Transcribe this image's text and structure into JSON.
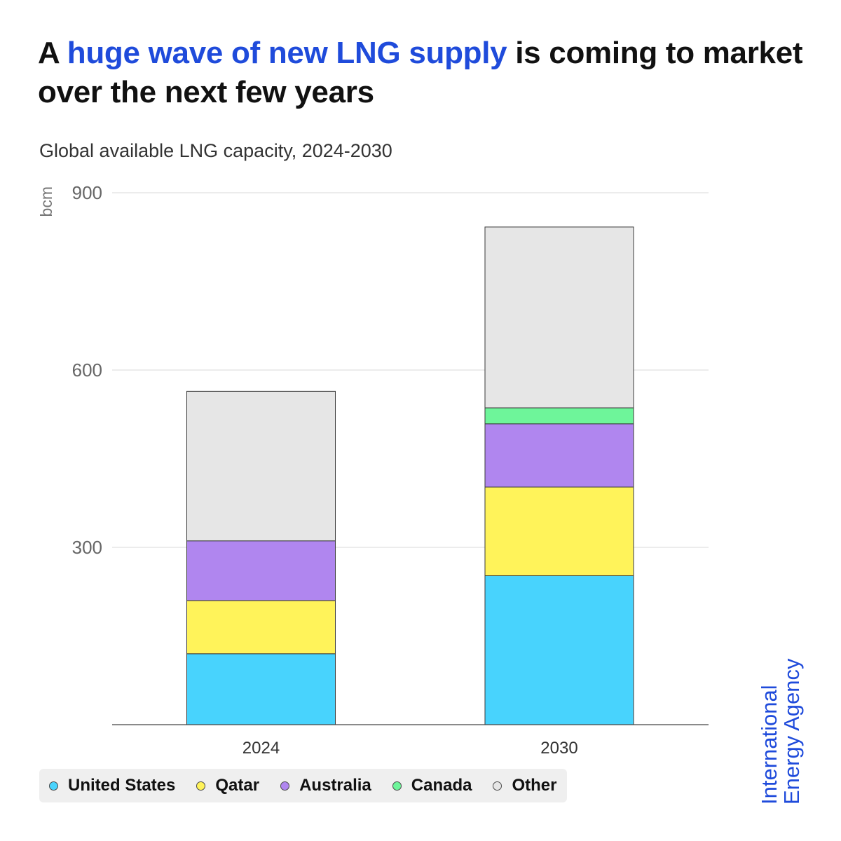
{
  "headline": {
    "prefix": "A ",
    "highlight": "huge wave of new LNG supply",
    "suffix": " is coming to market over the next few years"
  },
  "subtitle": "Global available LNG capacity, 2024-2030",
  "colors": {
    "highlight": "#1f4bdb",
    "United States": "#48d3fd",
    "Qatar": "#fff35a",
    "Australia": "#b086ef",
    "Canada": "#6ef59a",
    "Other": "#e6e6e6"
  },
  "legend": [
    "United States",
    "Qatar",
    "Australia",
    "Canada",
    "Other"
  ],
  "brand": {
    "line1": "International",
    "line2": "Energy Agency"
  },
  "chart_data": {
    "type": "bar",
    "stacked": true,
    "title": "Global available LNG capacity, 2024-2030",
    "xlabel": "",
    "ylabel": "bcm",
    "ylim": [
      0,
      900
    ],
    "yticks": [
      300,
      600,
      900
    ],
    "grid": true,
    "legend_position": "bottom-left",
    "categories": [
      "2024",
      "2030"
    ],
    "series": [
      {
        "name": "United States",
        "values": [
          120,
          252
        ]
      },
      {
        "name": "Qatar",
        "values": [
          90,
          150
        ]
      },
      {
        "name": "Australia",
        "values": [
          101,
          107
        ]
      },
      {
        "name": "Canada",
        "values": [
          0,
          27
        ]
      },
      {
        "name": "Other",
        "values": [
          253,
          306
        ]
      }
    ]
  }
}
